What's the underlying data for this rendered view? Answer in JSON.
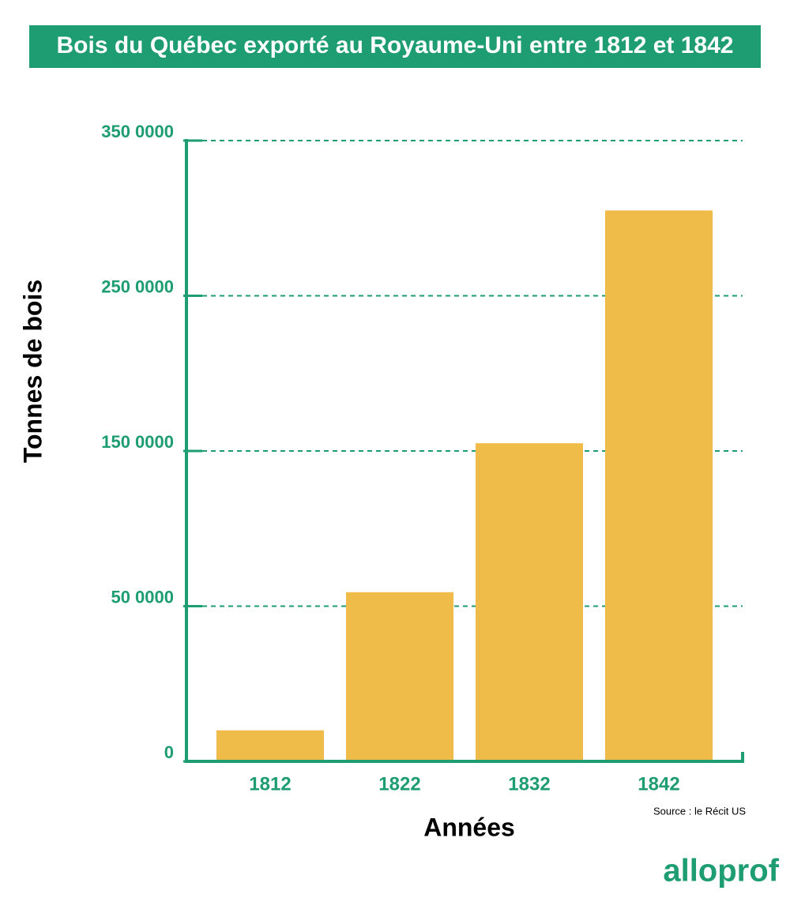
{
  "chart_data": {
    "type": "bar",
    "title": "Bois du Québec exporté au Royaume-Uni entre 1812 et 1842",
    "y_label": "Tonnes de bois",
    "x_label": "Années",
    "source": "Source : le Récit US",
    "logo": "alloprof",
    "categories": [
      "1812",
      "1822",
      "1832",
      "1842"
    ],
    "values": [
      100000,
      590000,
      1550000,
      3050000
    ],
    "color": "#efbc4a",
    "axis_color": "#1e9c72",
    "ylim": [
      0,
      3500000
    ],
    "yticks": [
      0,
      {
        "value": 500000,
        "label": "50 0000"
      },
      {
        "value": 1500000,
        "label": "150 0000"
      },
      {
        "value": 2500000,
        "label": "250 0000"
      },
      {
        "value": 3500000,
        "label": "350 0000"
      }
    ],
    "grid": true
  }
}
